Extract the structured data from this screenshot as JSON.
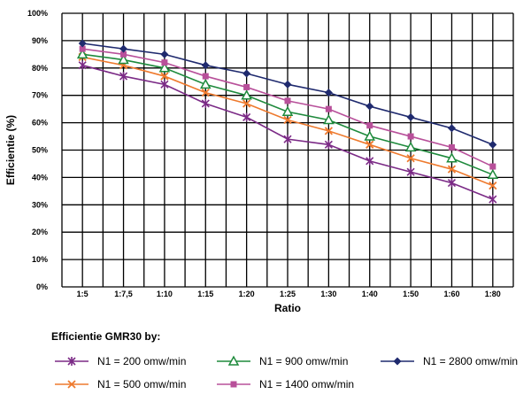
{
  "chart_data": {
    "type": "line",
    "xlabel": "Ratio",
    "ylabel": "Efficientie (%)",
    "categories": [
      "1:5",
      "1:7,5",
      "1:10",
      "1:15",
      "1:20",
      "1:25",
      "1:30",
      "1:40",
      "1:50",
      "1:60",
      "1:80"
    ],
    "y_ticks": [
      "0%",
      "10%",
      "20%",
      "30%",
      "40%",
      "50%",
      "60%",
      "70%",
      "80%",
      "90%",
      "100%"
    ],
    "ylim": [
      0,
      100
    ],
    "grid": true,
    "legend": {
      "title": "Efficientie GMR30 by:",
      "placement": "bottom"
    },
    "series": [
      {
        "name": "N1 = 200 omw/min",
        "color": "#7b2a86",
        "marker": "asterisk",
        "values": [
          81,
          77,
          74,
          67,
          62,
          54,
          52,
          46,
          42,
          38,
          32
        ]
      },
      {
        "name": "N1 = 500 omw/min",
        "color": "#ee7a2e",
        "marker": "x",
        "values": [
          84,
          81,
          77,
          71,
          67,
          61,
          57,
          52,
          47,
          43,
          37
        ]
      },
      {
        "name": "N1 = 900 omw/min",
        "color": "#1e8a3c",
        "marker": "triangle",
        "values": [
          85,
          83,
          80,
          74,
          70,
          64,
          61,
          55,
          51,
          47,
          41
        ]
      },
      {
        "name": "N1 = 1400 omw/min",
        "color": "#b8509a",
        "marker": "square",
        "values": [
          87,
          85,
          82,
          77,
          73,
          68,
          65,
          59,
          55,
          51,
          44
        ]
      },
      {
        "name": "N1 = 2800 omw/min",
        "color": "#1f2a6e",
        "marker": "diamond",
        "values": [
          89,
          87,
          85,
          81,
          78,
          74,
          71,
          66,
          62,
          58,
          52
        ]
      }
    ]
  }
}
